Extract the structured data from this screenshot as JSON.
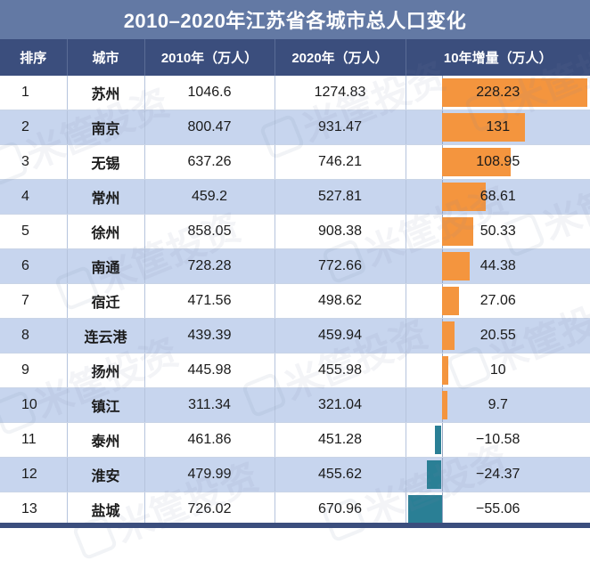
{
  "title": "2010–2020年江苏省各城市总人口变化",
  "headers": {
    "rank": "排序",
    "city": "城市",
    "pop2010": "2010年（万人）",
    "pop2020": "2020年（万人）",
    "change": "10年增量（万人）"
  },
  "watermark": "米筐投资",
  "colors": {
    "title_bg": "#6379a4",
    "header_bg": "#3b4e7d",
    "row_alt": "#c7d5ee",
    "positive_bar": "#f4953e",
    "negative_bar": "#2a7f95"
  },
  "chart_data": {
    "type": "table",
    "rows": [
      {
        "rank": "1",
        "city": "苏州",
        "pop2010": "1046.6",
        "pop2020": "1274.83",
        "change_label": "228.23",
        "change": 228.23
      },
      {
        "rank": "2",
        "city": "南京",
        "pop2010": "800.47",
        "pop2020": "931.47",
        "change_label": "131",
        "change": 131
      },
      {
        "rank": "3",
        "city": "无锡",
        "pop2010": "637.26",
        "pop2020": "746.21",
        "change_label": "108.95",
        "change": 108.95
      },
      {
        "rank": "4",
        "city": "常州",
        "pop2010": "459.2",
        "pop2020": "527.81",
        "change_label": "68.61",
        "change": 68.61
      },
      {
        "rank": "5",
        "city": "徐州",
        "pop2010": "858.05",
        "pop2020": "908.38",
        "change_label": "50.33",
        "change": 50.33
      },
      {
        "rank": "6",
        "city": "南通",
        "pop2010": "728.28",
        "pop2020": "772.66",
        "change_label": "44.38",
        "change": 44.38
      },
      {
        "rank": "7",
        "city": "宿迁",
        "pop2010": "471.56",
        "pop2020": "498.62",
        "change_label": "27.06",
        "change": 27.06
      },
      {
        "rank": "8",
        "city": "连云港",
        "pop2010": "439.39",
        "pop2020": "459.94",
        "change_label": "20.55",
        "change": 20.55
      },
      {
        "rank": "9",
        "city": "扬州",
        "pop2010": "445.98",
        "pop2020": "455.98",
        "change_label": "10",
        "change": 10
      },
      {
        "rank": "10",
        "city": "镇江",
        "pop2010": "311.34",
        "pop2020": "321.04",
        "change_label": "9.7",
        "change": 9.7
      },
      {
        "rank": "11",
        "city": "泰州",
        "pop2010": "461.86",
        "pop2020": "451.28",
        "change_label": "−10.58",
        "change": -10.58
      },
      {
        "rank": "12",
        "city": "淮安",
        "pop2010": "479.99",
        "pop2020": "455.62",
        "change_label": "−24.37",
        "change": -24.37
      },
      {
        "rank": "13",
        "city": "盐城",
        "pop2010": "726.02",
        "pop2020": "670.96",
        "change_label": "−55.06",
        "change": -55.06
      }
    ]
  }
}
